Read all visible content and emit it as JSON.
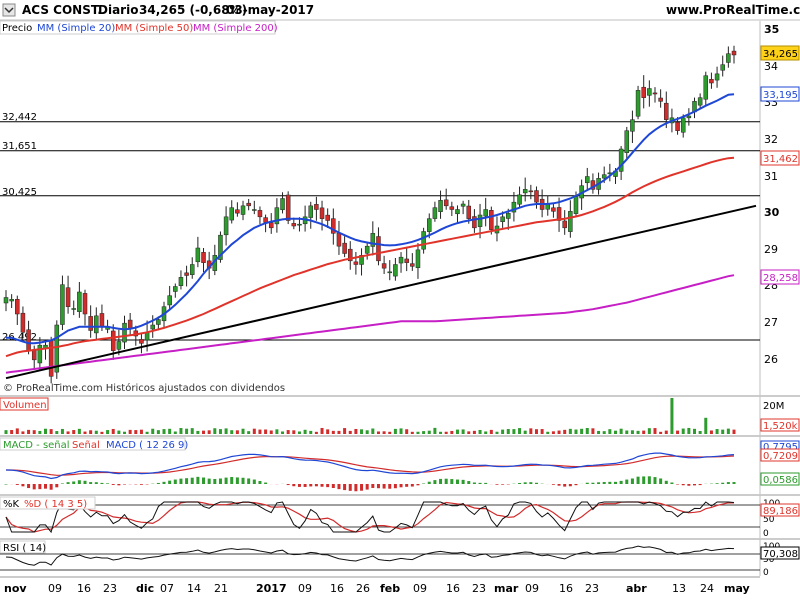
{
  "header": {
    "title": "ACS CONST.",
    "period": "Diario",
    "last": "34,265 (-0,68%)",
    "date": "03-may-2017",
    "site": "www.ProRealTime.com"
  },
  "legend": {
    "price": "Precio",
    "mm20": "MM (Simple 20)",
    "mm50": "MM (Simple 50)",
    "mm200": "MM (Simple 200)"
  },
  "watermark": "© ProRealTime.com  Históricos ajustados con dividendos",
  "price_scale": [
    "35",
    "34",
    "33",
    "32",
    "31",
    "30",
    "29",
    "28",
    "27",
    "26"
  ],
  "level_labels": [
    "32,442",
    "31,651",
    "30,425",
    "26,492"
  ],
  "right_tags": [
    "34,265",
    "33,195",
    "31,462",
    "28,258"
  ],
  "volume": {
    "label": "Volumen",
    "scale": "20M",
    "value": "1,520k"
  },
  "macd": {
    "label_line": "MACD - señal",
    "label_signal": "Señal",
    "label_macd": "MACD ( 12 26 9)",
    "values": [
      "0,7795",
      "0,7209",
      "0,0586"
    ]
  },
  "stoch": {
    "label_k": "%K",
    "label_d": "%D ( 14 3 5)",
    "scale": [
      "100",
      "50",
      "0"
    ],
    "value": "89,186"
  },
  "rsi": {
    "label": "RSI ( 14)",
    "scale": [
      "100",
      "50",
      "0"
    ],
    "value": "70,308"
  },
  "xaxis": [
    "nov",
    "09",
    "16",
    "23",
    "dic",
    "07",
    "14",
    "21",
    "2017",
    "09",
    "16",
    "26",
    "feb",
    "09",
    "16",
    "23",
    "mar",
    "09",
    "16",
    "23",
    "abr",
    "13",
    "24",
    "may"
  ],
  "colors": {
    "up": "#2e9b2e",
    "down": "#d12c2c",
    "mm20": "#1f47d6",
    "mm50": "#e0342b",
    "mm200": "#c61fc6",
    "trend": "#000000"
  },
  "chart_data": [
    {
      "type": "candlestick",
      "title": "ACS CONST.",
      "subtitle": "Diario",
      "ylim": [
        25.4,
        35.3
      ],
      "tag_values": [
        34.265,
        33.195,
        31.462,
        28.258
      ],
      "horizontal_levels": [
        32.442,
        31.651,
        30.425,
        26.492
      ],
      "trendline": {
        "start": [
          0,
          25.45
        ],
        "end": [
          124,
          30.15
        ]
      },
      "candles_close": [
        27.65,
        27.6,
        27.2,
        26.7,
        26.2,
        25.95,
        26.35,
        26.35,
        25.5,
        26.9,
        28.0,
        27.4,
        27.35,
        27.8,
        27.2,
        26.75,
        27.15,
        26.85,
        26.85,
        26.2,
        26.45,
        26.95,
        26.8,
        26.6,
        26.4,
        26.7,
        26.9,
        27.05,
        27.4,
        27.7,
        27.95,
        28.2,
        28.25,
        28.55,
        29.0,
        28.6,
        28.45,
        28.8,
        29.35,
        29.85,
        30.1,
        29.95,
        30.15,
        30.15,
        30.05,
        29.85,
        29.7,
        29.55,
        30.1,
        30.35,
        29.75,
        29.6,
        29.65,
        29.85,
        30.15,
        30.05,
        29.8,
        29.75,
        29.4,
        29.05,
        28.85,
        28.65,
        28.55,
        28.8,
        29.05,
        29.4,
        28.65,
        28.45,
        28.35,
        28.55,
        28.75,
        28.6,
        28.5,
        28.95,
        29.45,
        29.8,
        30.1,
        30.3,
        30.15,
        30.05,
        30.05,
        30.2,
        29.8,
        29.55,
        29.9,
        30.05,
        29.5,
        29.6,
        29.85,
        29.95,
        30.25,
        30.45,
        30.6,
        30.55,
        30.25,
        30.05,
        30.2,
        30.0,
        29.75,
        29.55,
        30.0,
        30.4,
        30.7,
        30.95,
        30.6,
        30.9,
        31.0,
        31.05,
        31.1,
        31.7,
        32.2,
        32.5,
        33.3,
        33.1,
        33.35,
        33.2,
        33.0,
        32.5,
        32.55,
        32.2,
        32.55,
        32.6,
        33.0,
        33.1,
        33.7,
        33.5,
        33.75,
        34.0,
        34.3,
        34.265
      ],
      "mm20": [
        26.55,
        26.55,
        26.5,
        26.45,
        26.4,
        26.4,
        26.42,
        26.45,
        26.48,
        26.55,
        26.65,
        26.75,
        26.8,
        26.85,
        26.85,
        26.85,
        26.85,
        26.85,
        26.85,
        26.82,
        26.8,
        26.78,
        26.8,
        26.83,
        26.88,
        26.95,
        27.02,
        27.1,
        27.2,
        27.32,
        27.45,
        27.6,
        27.75,
        27.92,
        28.1,
        28.3,
        28.48,
        28.65,
        28.8,
        28.95,
        29.1,
        29.22,
        29.35,
        29.45,
        29.55,
        29.62,
        29.68,
        29.72,
        29.75,
        29.78,
        29.8,
        29.8,
        29.8,
        29.78,
        29.75,
        29.7,
        29.65,
        29.58,
        29.5,
        29.42,
        29.35,
        29.28,
        29.22,
        29.18,
        29.15,
        29.12,
        29.1,
        29.08,
        29.07,
        29.08,
        29.1,
        29.13,
        29.17,
        29.22,
        29.28,
        29.35,
        29.42,
        29.5,
        29.57,
        29.63,
        29.68,
        29.72,
        29.75,
        29.78,
        29.8,
        29.83,
        29.86,
        29.9,
        29.95,
        30.0,
        30.05,
        30.1,
        30.15,
        30.18,
        30.2,
        30.2,
        30.2,
        30.22,
        30.25,
        30.3,
        30.35,
        30.42,
        30.5,
        30.58,
        30.66,
        30.75,
        30.85,
        30.97,
        31.1,
        31.25,
        31.42,
        31.6,
        31.78,
        31.95,
        32.1,
        32.22,
        32.32,
        32.4,
        32.47,
        32.52,
        32.58,
        32.65,
        32.72,
        32.8,
        32.88,
        32.95,
        33.02,
        33.1,
        33.18,
        33.195
      ],
      "mm50": [
        26.05,
        26.1,
        26.15,
        26.18,
        26.2,
        26.22,
        26.24,
        26.26,
        26.28,
        26.3,
        26.33,
        26.36,
        26.4,
        26.43,
        26.46,
        26.48,
        26.5,
        26.52,
        26.54,
        26.56,
        26.58,
        26.6,
        26.62,
        26.64,
        26.67,
        26.7,
        26.74,
        26.78,
        26.82,
        26.87,
        26.92,
        26.97,
        27.02,
        27.08,
        27.14,
        27.2,
        27.27,
        27.34,
        27.41,
        27.48,
        27.55,
        27.62,
        27.69,
        27.76,
        27.83,
        27.9,
        27.96,
        28.02,
        28.08,
        28.14,
        28.2,
        28.26,
        28.31,
        28.36,
        28.41,
        28.46,
        28.51,
        28.56,
        28.6,
        28.64,
        28.68,
        28.71,
        28.74,
        28.77,
        28.8,
        28.83,
        28.86,
        28.89,
        28.92,
        28.95,
        28.98,
        29.01,
        29.04,
        29.07,
        29.1,
        29.13,
        29.16,
        29.19,
        29.22,
        29.25,
        29.28,
        29.31,
        29.34,
        29.37,
        29.4,
        29.43,
        29.46,
        29.49,
        29.52,
        29.55,
        29.58,
        29.61,
        29.64,
        29.67,
        29.7,
        29.72,
        29.74,
        29.76,
        29.78,
        29.8,
        29.83,
        29.86,
        29.9,
        29.95,
        30.0,
        30.06,
        30.12,
        30.19,
        30.26,
        30.34,
        30.43,
        30.52,
        30.6,
        30.68,
        30.75,
        30.82,
        30.88,
        30.94,
        30.99,
        31.04,
        31.09,
        31.14,
        31.19,
        31.24,
        31.29,
        31.34,
        31.38,
        31.42,
        31.45,
        31.462
      ],
      "mm200": [
        25.6,
        25.62,
        25.64,
        25.66,
        25.68,
        25.7,
        25.72,
        25.74,
        25.76,
        25.78,
        25.8,
        25.82,
        25.84,
        25.86,
        25.88,
        25.9,
        25.92,
        25.94,
        25.96,
        25.98,
        26.0,
        26.02,
        26.04,
        26.06,
        26.08,
        26.1,
        26.12,
        26.14,
        26.16,
        26.18,
        26.2,
        26.22,
        26.24,
        26.26,
        26.28,
        26.3,
        26.32,
        26.34,
        26.36,
        26.38,
        26.4,
        26.42,
        26.44,
        26.46,
        26.48,
        26.5,
        26.52,
        26.54,
        26.56,
        26.58,
        26.6,
        26.62,
        26.64,
        26.66,
        26.68,
        26.7,
        26.72,
        26.74,
        26.76,
        26.78,
        26.8,
        26.82,
        26.84,
        26.86,
        26.88,
        26.9,
        26.92,
        26.94,
        26.96,
        26.98,
        27.0,
        27.0,
        27.0,
        27.0,
        27.0,
        27.0,
        27.0,
        27.01,
        27.02,
        27.03,
        27.04,
        27.05,
        27.06,
        27.07,
        27.08,
        27.09,
        27.1,
        27.11,
        27.12,
        27.13,
        27.14,
        27.15,
        27.16,
        27.17,
        27.18,
        27.19,
        27.2,
        27.21,
        27.22,
        27.23,
        27.25,
        27.27,
        27.29,
        27.31,
        27.33,
        27.36,
        27.39,
        27.42,
        27.45,
        27.48,
        27.51,
        27.55,
        27.59,
        27.63,
        27.67,
        27.71,
        27.75,
        27.79,
        27.83,
        27.87,
        27.91,
        27.95,
        27.99,
        28.03,
        28.07,
        28.11,
        28.15,
        28.19,
        28.23,
        28.258
      ]
    },
    {
      "type": "bar",
      "title": "Volumen",
      "ylim": [
        0,
        20000000
      ],
      "spikes": [
        {
          "index": 118,
          "value": 20000000
        },
        {
          "index": 124,
          "value": 9000000
        }
      ]
    },
    {
      "type": "line",
      "title": "MACD ( 12 26 9)",
      "values": [
        0.7795,
        0.7209,
        0.0586
      ]
    },
    {
      "type": "line",
      "title": "%D ( 14 3 5)",
      "ylim": [
        0,
        100
      ],
      "value": 89.186
    },
    {
      "type": "line",
      "title": "RSI ( 14)",
      "ylim": [
        0,
        100
      ],
      "value": 70.308
    }
  ]
}
